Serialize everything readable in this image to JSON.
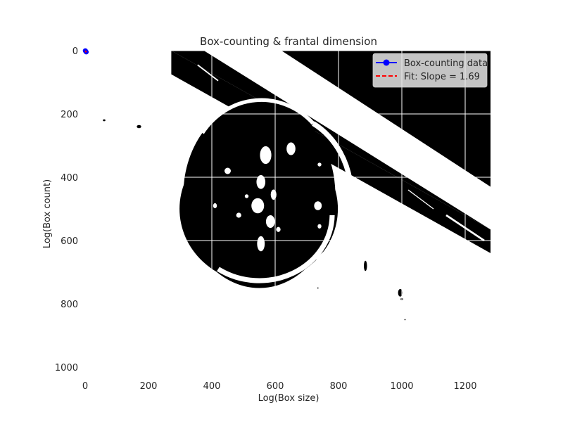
{
  "chart_data": {
    "type": "scatter",
    "title": "Box-counting & frantal dimension",
    "xlabel": "Log(Box size)",
    "ylabel": "Log(Box count)",
    "xlim": [
      0,
      1280
    ],
    "ylim": [
      1000,
      0
    ],
    "x_ticks": [
      0,
      200,
      400,
      600,
      800,
      1000,
      1200
    ],
    "y_ticks": [
      0,
      200,
      400,
      600,
      800,
      1000
    ],
    "grid": true,
    "legend_position": "top-right",
    "background_image": "binary black-and-white image: large circular disc with white specks and a broken white ring, diagonal black band along the upper right",
    "series": [
      {
        "name": "Box-counting data",
        "style": "line-with-markers",
        "color": "#0000ff",
        "x": [
          0.5,
          1.5,
          2.5,
          3.5
        ],
        "y": [
          0.2,
          1.5,
          2.9,
          4.3
        ]
      },
      {
        "name": "Fit: Slope = 1.69",
        "style": "dashed",
        "color": "#ff0000",
        "x": [
          0.5,
          3.5
        ],
        "y": [
          0.2,
          5.27
        ]
      }
    ]
  }
}
